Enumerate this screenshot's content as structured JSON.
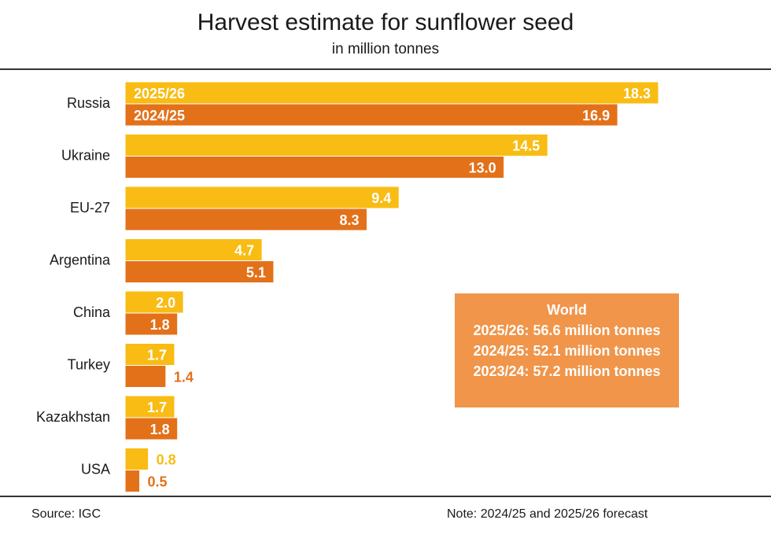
{
  "title": "Harvest estimate for sunflower seed",
  "subtitle": "in million tonnes",
  "colors": {
    "current": "#f8bc14",
    "previous": "#e3711a",
    "world_box": "#f0954a"
  },
  "chart_data": {
    "type": "bar",
    "orientation": "horizontal",
    "title": "Harvest estimate for sunflower seed",
    "subtitle": "in million tonnes",
    "categories": [
      "Russia",
      "Ukraine",
      "EU-27",
      "Argentina",
      "China",
      "Turkey",
      "Kazakhstan",
      "USA"
    ],
    "series": [
      {
        "name": "2025/26",
        "values": [
          18.3,
          14.5,
          9.4,
          4.7,
          2.0,
          1.7,
          1.7,
          0.8
        ]
      },
      {
        "name": "2024/25",
        "values": [
          16.9,
          13.0,
          8.3,
          5.1,
          1.8,
          1.4,
          1.8,
          0.5
        ]
      }
    ],
    "xlim": [
      0,
      20
    ],
    "grid": false,
    "legend": "inside first bar pair"
  },
  "world": {
    "heading": "World",
    "lines": [
      "2025/26: 56.6 million tonnes",
      "2024/25: 52.1 million tonnes",
      "2023/24: 57.2 million tonnes"
    ]
  },
  "footer": {
    "source": "Source: IGC",
    "note": "Note: 2024/25 and 2025/26 forecast"
  }
}
